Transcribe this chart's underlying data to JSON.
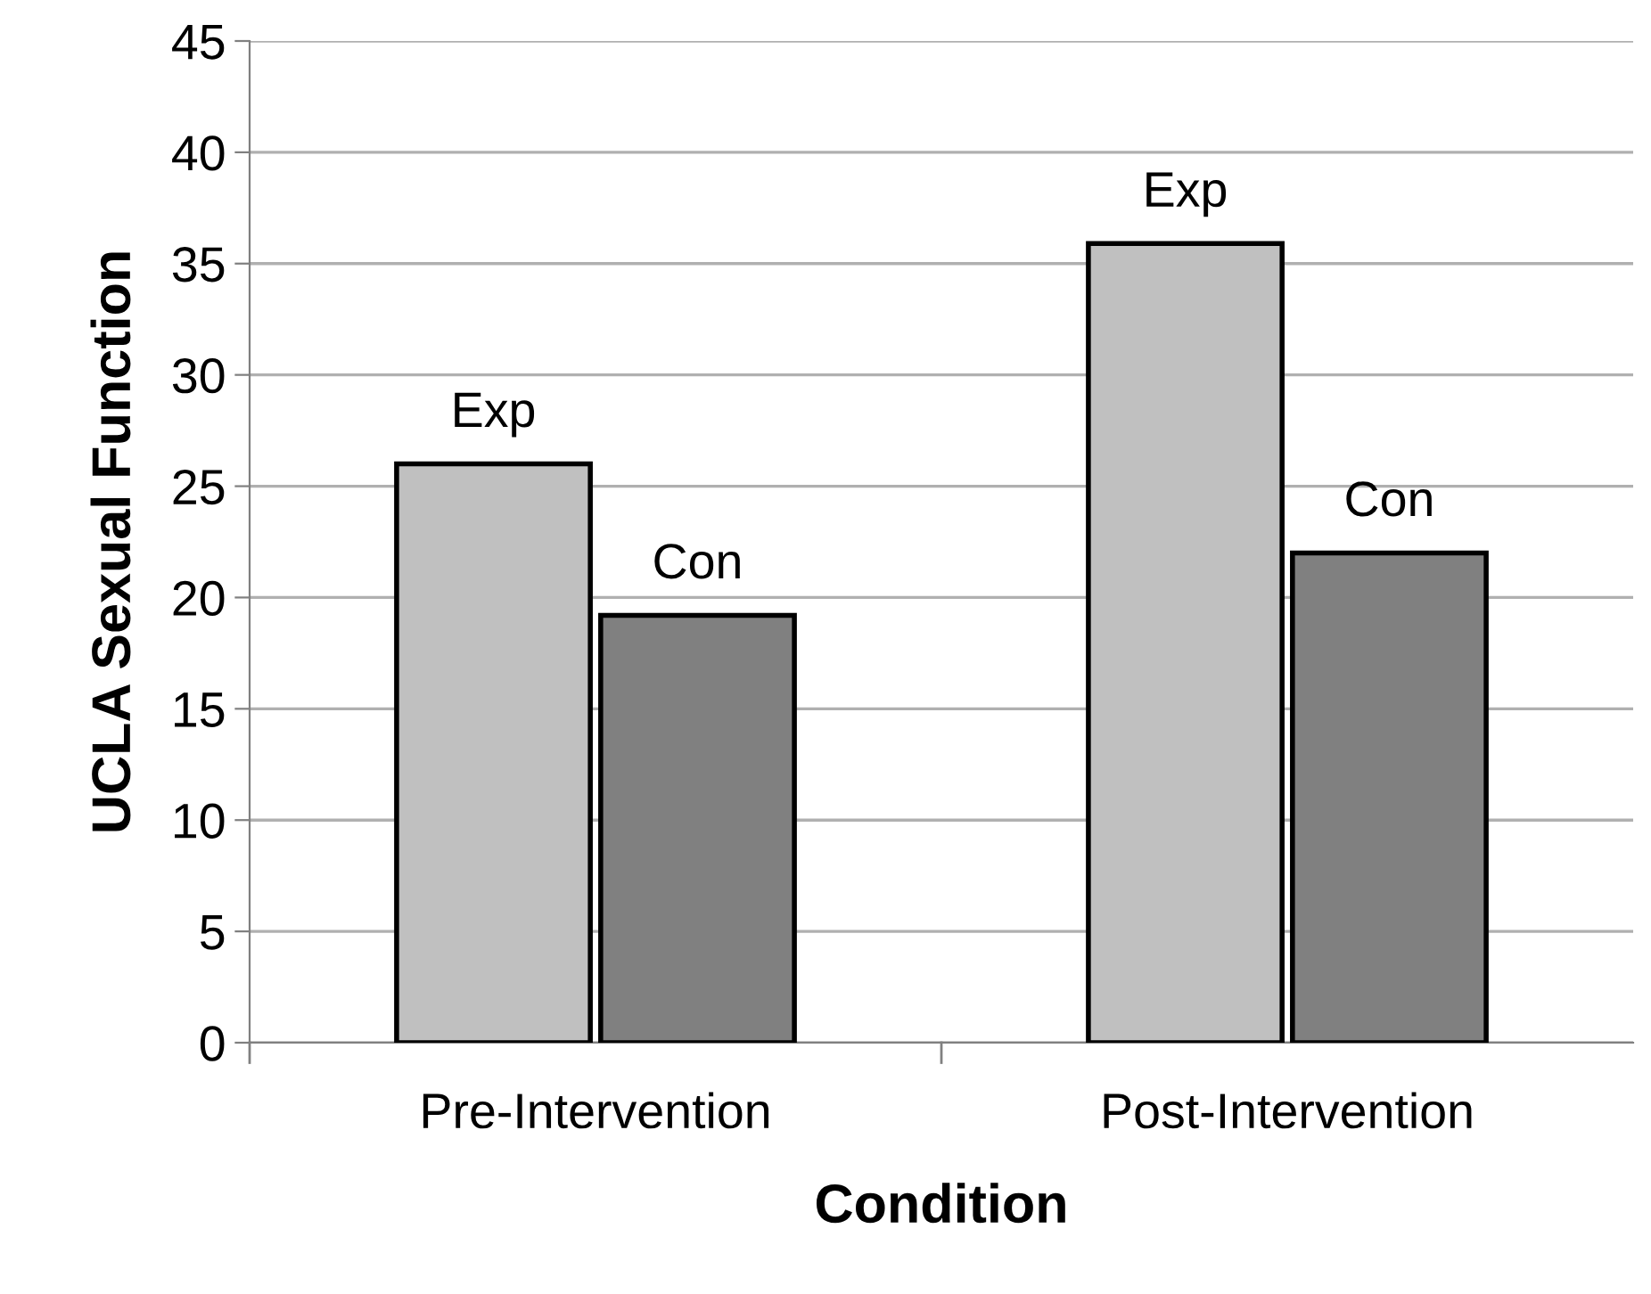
{
  "chart_data": {
    "type": "bar",
    "xlabel": "Condition",
    "ylabel": "UCLA Sexual Function",
    "categories": [
      "Pre-Intervention",
      "Post-Intervention"
    ],
    "series": [
      {
        "name": "Exp",
        "color": "#c0c0c0",
        "values": [
          26.0,
          35.9
        ]
      },
      {
        "name": "Con",
        "color": "#808080",
        "values": [
          19.2,
          22.0
        ]
      }
    ],
    "ylim": [
      0,
      45
    ],
    "yticks": [
      0,
      5,
      10,
      15,
      20,
      25,
      30,
      35,
      40,
      45
    ],
    "grid": "y",
    "legend": false
  }
}
